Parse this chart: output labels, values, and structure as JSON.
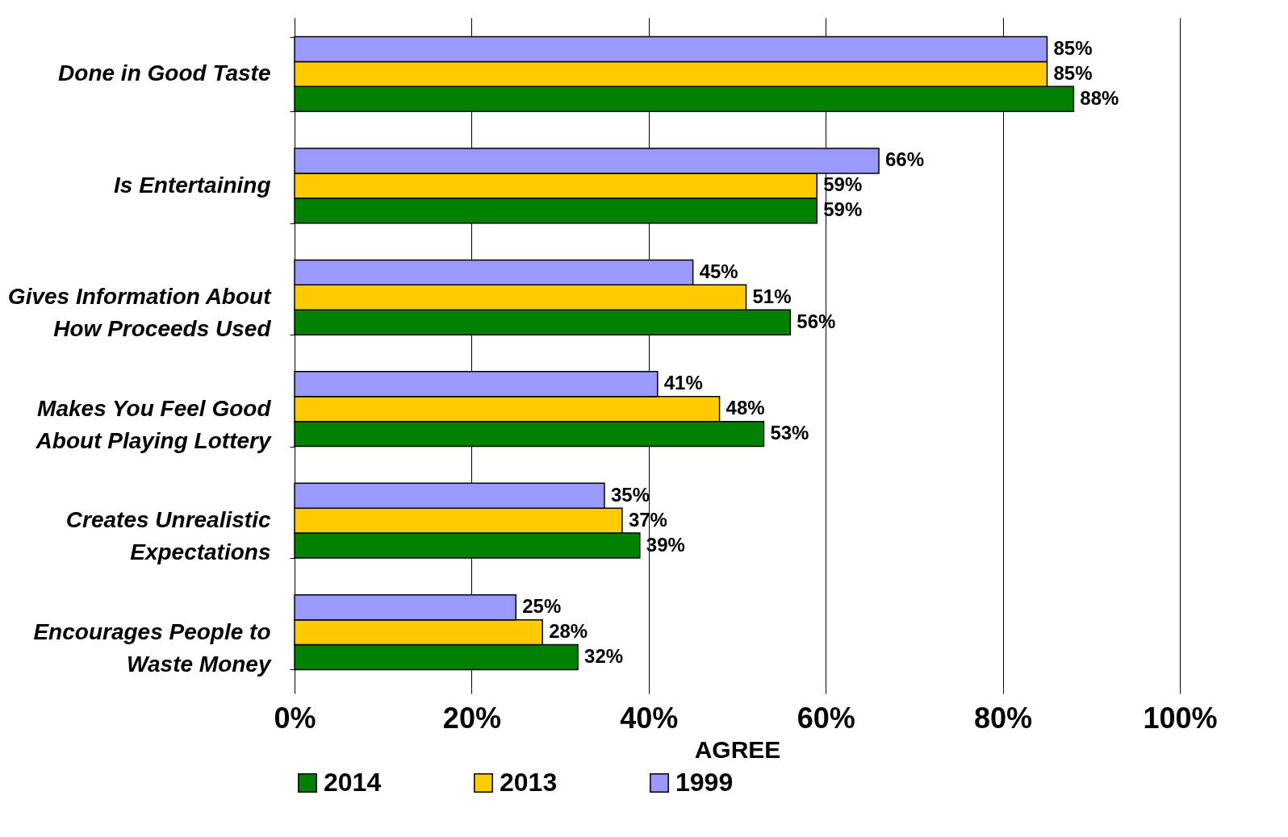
{
  "chart_data": {
    "type": "bar",
    "orientation": "horizontal",
    "xlabel": "AGREE",
    "categories": [
      "Done in Good Taste",
      "Is Entertaining",
      "Gives Information About\nHow Proceeds Used",
      "Makes You Feel Good\nAbout Playing Lottery",
      "Creates Unrealistic\nExpectations",
      "Encourages People to\nWaste Money"
    ],
    "series": [
      {
        "name": "2014",
        "color": "#008000",
        "values": [
          88,
          59,
          56,
          53,
          39,
          32
        ],
        "value_labels": [
          "88%",
          "59%",
          "56%",
          "53%",
          "39%",
          "32%"
        ]
      },
      {
        "name": "2013",
        "color": "#ffcc00",
        "values": [
          85,
          59,
          51,
          48,
          37,
          28
        ],
        "value_labels": [
          "85%",
          "59%",
          "51%",
          "48%",
          "37%",
          "28%"
        ]
      },
      {
        "name": "1999",
        "color": "#9999ff",
        "values": [
          85,
          66,
          45,
          41,
          35,
          25
        ],
        "value_labels": [
          "85%",
          "66%",
          "45%",
          "41%",
          "35%",
          "25%"
        ]
      }
    ],
    "xlim": [
      0,
      100
    ],
    "xticks": [
      {
        "value": 0,
        "label": "0%"
      },
      {
        "value": 20,
        "label": "20%"
      },
      {
        "value": 40,
        "label": "40%"
      },
      {
        "value": 60,
        "label": "60%"
      },
      {
        "value": 80,
        "label": "80%"
      },
      {
        "value": 100,
        "label": "100%"
      }
    ],
    "grid": "x",
    "legend": "bottom"
  }
}
